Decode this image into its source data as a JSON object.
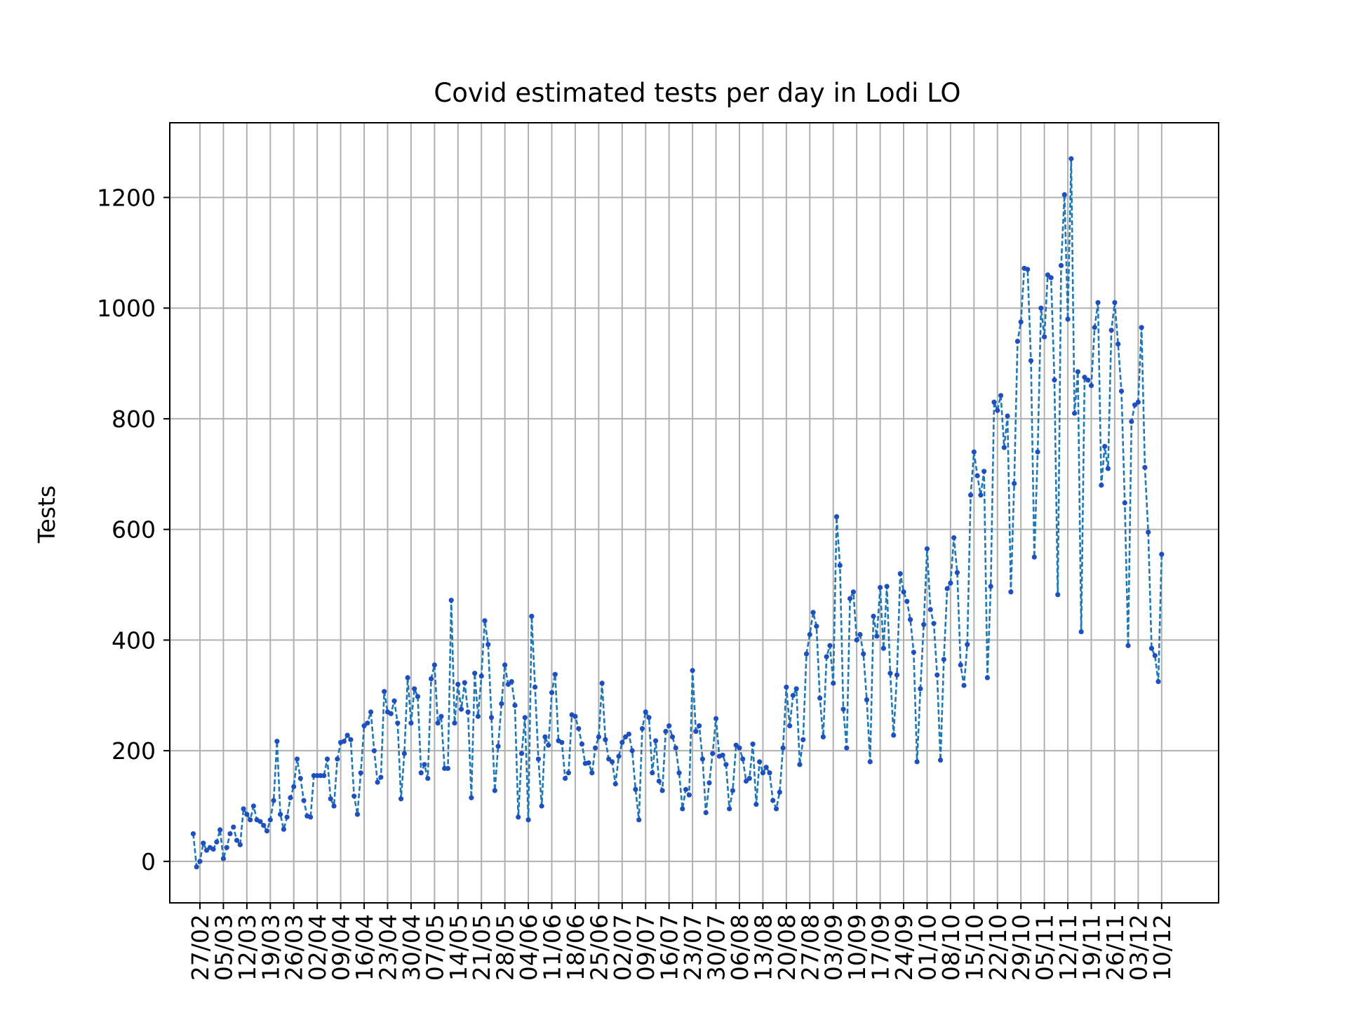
{
  "chart_data": {
    "type": "line",
    "title": "Covid estimated tests per day in Lodi LO",
    "xlabel": "",
    "ylabel": "Tests",
    "ylim": [
      -75,
      1335
    ],
    "xlim": [
      "2020-02-18",
      "2020-12-27"
    ],
    "grid": true,
    "legend": "none",
    "line_style": "dashed",
    "marker": "dot",
    "colors": {
      "line": "#1f77b4",
      "marker": "#1f4fbf",
      "grid": "#b0b0b0"
    },
    "yticks": [
      0,
      200,
      400,
      600,
      800,
      1000,
      1200
    ],
    "xtick_dates": [
      "2020-02-27",
      "2020-03-05",
      "2020-03-12",
      "2020-03-19",
      "2020-03-26",
      "2020-04-02",
      "2020-04-09",
      "2020-04-16",
      "2020-04-23",
      "2020-04-30",
      "2020-05-07",
      "2020-05-14",
      "2020-05-21",
      "2020-05-28",
      "2020-06-04",
      "2020-06-11",
      "2020-06-18",
      "2020-06-25",
      "2020-07-02",
      "2020-07-09",
      "2020-07-16",
      "2020-07-23",
      "2020-07-30",
      "2020-08-06",
      "2020-08-13",
      "2020-08-20",
      "2020-08-27",
      "2020-09-03",
      "2020-09-10",
      "2020-09-17",
      "2020-09-24",
      "2020-10-01",
      "2020-10-08",
      "2020-10-15",
      "2020-10-22",
      "2020-10-29",
      "2020-11-05",
      "2020-11-12",
      "2020-11-19",
      "2020-11-26",
      "2020-12-03",
      "2020-12-10"
    ],
    "xtick_labels": [
      "27/02",
      "05/03",
      "12/03",
      "19/03",
      "26/03",
      "02/04",
      "09/04",
      "16/04",
      "23/04",
      "30/04",
      "07/05",
      "14/05",
      "21/05",
      "28/05",
      "04/06",
      "11/06",
      "18/06",
      "25/06",
      "02/07",
      "09/07",
      "16/07",
      "23/07",
      "30/07",
      "06/08",
      "13/08",
      "20/08",
      "27/08",
      "03/09",
      "10/09",
      "17/09",
      "24/09",
      "01/10",
      "08/10",
      "15/10",
      "22/10",
      "29/10",
      "05/11",
      "12/11",
      "19/11",
      "26/11",
      "03/12",
      "10/12"
    ],
    "x_start": "2020-02-25",
    "values": [
      50,
      -10,
      0,
      33,
      20,
      25,
      22,
      35,
      57,
      5,
      25,
      50,
      62,
      38,
      30,
      95,
      85,
      75,
      100,
      75,
      72,
      65,
      55,
      75,
      110,
      217,
      85,
      58,
      80,
      115,
      135,
      185,
      150,
      110,
      82,
      80,
      155,
      155,
      155,
      155,
      185,
      113,
      100,
      185,
      215,
      217,
      228,
      220,
      118,
      85,
      160,
      245,
      250,
      270,
      200,
      143,
      152,
      307,
      270,
      267,
      290,
      250,
      113,
      195,
      332,
      250,
      312,
      298,
      160,
      175,
      150,
      330,
      355,
      250,
      262,
      168,
      168,
      472,
      250,
      320,
      275,
      323,
      270,
      115,
      340,
      262,
      335,
      435,
      392,
      260,
      128,
      208,
      285,
      355,
      320,
      325,
      282,
      80,
      195,
      260,
      75,
      443,
      315,
      185,
      100,
      225,
      210,
      305,
      338,
      218,
      215,
      150,
      160,
      265,
      262,
      240,
      212,
      177,
      178,
      160,
      205,
      225,
      322,
      220,
      185,
      180,
      140,
      190,
      215,
      225,
      230,
      200,
      130,
      75,
      240,
      270,
      260,
      160,
      218,
      145,
      128,
      235,
      245,
      225,
      205,
      160,
      95,
      130,
      120,
      345,
      235,
      245,
      185,
      88,
      142,
      195,
      258,
      190,
      192,
      175,
      95,
      128,
      210,
      205,
      185,
      145,
      150,
      212,
      103,
      180,
      160,
      170,
      160,
      110,
      95,
      125,
      205,
      315,
      245,
      300,
      312,
      175,
      220,
      375,
      410,
      450,
      425,
      295,
      225,
      370,
      390,
      322,
      623,
      535,
      275,
      205,
      475,
      487,
      400,
      410,
      375,
      292,
      180,
      443,
      407,
      495,
      385,
      497,
      340,
      228,
      337,
      520,
      487,
      470,
      437,
      378,
      180,
      312,
      428,
      565,
      455,
      430,
      337,
      183,
      365,
      493,
      503,
      585,
      522,
      355,
      318,
      392,
      662,
      740,
      697,
      662,
      705,
      332,
      497,
      830,
      815,
      842,
      748,
      805,
      487,
      683,
      940,
      975,
      1072,
      1070,
      905,
      550,
      740,
      1000,
      948,
      1060,
      1055,
      870,
      482,
      1077,
      1205,
      980,
      1270,
      810,
      885,
      415,
      875,
      870,
      860,
      965,
      1010,
      680,
      750,
      710,
      960,
      1010,
      935,
      850,
      648,
      390,
      795,
      825,
      830,
      965,
      712,
      595,
      385,
      372,
      325,
      555
    ]
  }
}
